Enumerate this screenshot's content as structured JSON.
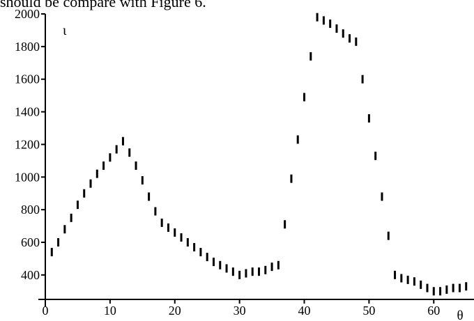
{
  "caption": "should be compare with Figure 6.",
  "chart_data": {
    "type": "scatter",
    "title": "",
    "xlabel": "θ",
    "ylabel": "ι",
    "xlim": [
      0,
      66
    ],
    "ylim": [
      250,
      2000
    ],
    "x_ticks": [
      0,
      10,
      20,
      30,
      40,
      50,
      60
    ],
    "x_tick_labels": [
      "0",
      "10",
      "20",
      "30",
      "40",
      "50",
      "60"
    ],
    "y_ticks": [
      400,
      600,
      800,
      1000,
      1200,
      1400,
      1600,
      1800,
      2000
    ],
    "y_tick_labels": [
      "400",
      "600",
      "800",
      "1000",
      "1200",
      "1400",
      "1600",
      "1800",
      "2000"
    ],
    "grid": false,
    "legend": "none",
    "marker": "short vertical bar",
    "color": "#000000",
    "points": [
      [
        1,
        540
      ],
      [
        2,
        600
      ],
      [
        3,
        680
      ],
      [
        4,
        750
      ],
      [
        5,
        830
      ],
      [
        6,
        900
      ],
      [
        7,
        960
      ],
      [
        8,
        1020
      ],
      [
        9,
        1070
      ],
      [
        10,
        1120
      ],
      [
        11,
        1170
      ],
      [
        12,
        1220
      ],
      [
        13,
        1150
      ],
      [
        14,
        1070
      ],
      [
        15,
        980
      ],
      [
        16,
        880
      ],
      [
        17,
        790
      ],
      [
        18,
        720
      ],
      [
        19,
        690
      ],
      [
        20,
        660
      ],
      [
        21,
        630
      ],
      [
        22,
        600
      ],
      [
        23,
        570
      ],
      [
        24,
        540
      ],
      [
        25,
        510
      ],
      [
        26,
        480
      ],
      [
        27,
        460
      ],
      [
        28,
        440
      ],
      [
        29,
        420
      ],
      [
        30,
        400
      ],
      [
        31,
        410
      ],
      [
        32,
        420
      ],
      [
        33,
        420
      ],
      [
        34,
        430
      ],
      [
        35,
        450
      ],
      [
        36,
        460
      ],
      [
        37,
        710
      ],
      [
        38,
        990
      ],
      [
        39,
        1230
      ],
      [
        40,
        1490
      ],
      [
        41,
        1740
      ],
      [
        42,
        1980
      ],
      [
        43,
        1960
      ],
      [
        44,
        1940
      ],
      [
        45,
        1910
      ],
      [
        46,
        1880
      ],
      [
        47,
        1850
      ],
      [
        48,
        1830
      ],
      [
        49,
        1600
      ],
      [
        50,
        1360
      ],
      [
        51,
        1130
      ],
      [
        52,
        880
      ],
      [
        53,
        640
      ],
      [
        54,
        400
      ],
      [
        55,
        380
      ],
      [
        56,
        370
      ],
      [
        57,
        360
      ],
      [
        58,
        340
      ],
      [
        59,
        320
      ],
      [
        60,
        300
      ],
      [
        61,
        300
      ],
      [
        62,
        310
      ],
      [
        63,
        320
      ],
      [
        64,
        320
      ],
      [
        65,
        330
      ]
    ]
  }
}
